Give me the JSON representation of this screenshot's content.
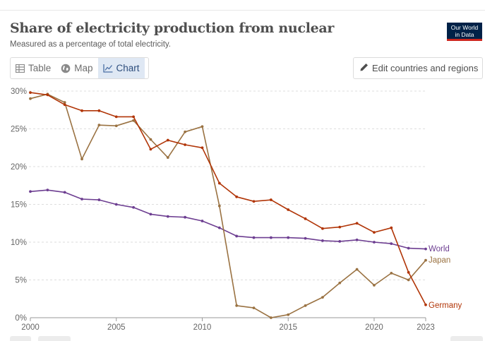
{
  "header": {
    "title": "Share of electricity production from nuclear",
    "subtitle": "Measured as a percentage of total electricity.",
    "logo_line1": "Our World",
    "logo_line2": "in Data"
  },
  "tabs": [
    {
      "label": "Table",
      "icon": "table-icon"
    },
    {
      "label": "Map",
      "icon": "globe-icon"
    },
    {
      "label": "Chart",
      "icon": "line-chart-icon",
      "active": true
    }
  ],
  "edit_button": {
    "label": "Edit countries and regions",
    "icon": "pencil-icon"
  },
  "colors": {
    "world": "#6d3e91",
    "japan": "#9a7242",
    "germany": "#b13507",
    "grid": "#dddddd",
    "active_tab_bg": "#dfe8f4"
  },
  "chart_data": {
    "type": "line",
    "title": "Share of electricity production from nuclear",
    "subtitle": "Measured as a percentage of total electricity.",
    "xlabel": "",
    "ylabel": "",
    "xlim": [
      2000,
      2023
    ],
    "ylim": [
      0,
      30
    ],
    "x_ticks": [
      2000,
      2005,
      2010,
      2015,
      2020,
      2023
    ],
    "y_ticks": [
      0,
      5,
      10,
      15,
      20,
      25,
      30
    ],
    "y_tick_labels": [
      "0%",
      "5%",
      "10%",
      "15%",
      "20%",
      "25%",
      "30%"
    ],
    "grid": "horizontal dashed",
    "legend": "inline labels at line ends (right)",
    "x": [
      2000,
      2001,
      2002,
      2003,
      2004,
      2005,
      2006,
      2007,
      2008,
      2009,
      2010,
      2011,
      2012,
      2013,
      2014,
      2015,
      2016,
      2017,
      2018,
      2019,
      2020,
      2021,
      2022,
      2023
    ],
    "series": [
      {
        "name": "World",
        "color": "#6d3e91",
        "values": [
          16.7,
          16.9,
          16.6,
          15.7,
          15.6,
          15.0,
          14.6,
          13.7,
          13.4,
          13.3,
          12.8,
          11.9,
          10.8,
          10.6,
          10.6,
          10.6,
          10.5,
          10.2,
          10.1,
          10.3,
          10.0,
          9.8,
          9.2,
          9.1
        ]
      },
      {
        "name": "Japan",
        "color": "#9a7242",
        "values": [
          29.0,
          29.6,
          28.5,
          21.0,
          25.5,
          25.4,
          26.1,
          23.6,
          21.2,
          24.6,
          25.3,
          14.8,
          1.6,
          1.3,
          0.0,
          0.4,
          1.6,
          2.7,
          4.6,
          6.4,
          4.3,
          5.9,
          5.0,
          7.6
        ]
      },
      {
        "name": "Germany",
        "color": "#b13507",
        "values": [
          29.8,
          29.5,
          28.2,
          27.4,
          27.4,
          26.6,
          26.6,
          22.3,
          23.5,
          22.9,
          22.5,
          17.8,
          16.0,
          15.4,
          15.6,
          14.3,
          13.1,
          11.8,
          12.0,
          12.5,
          11.3,
          11.9,
          6.0,
          1.7
        ]
      }
    ]
  }
}
